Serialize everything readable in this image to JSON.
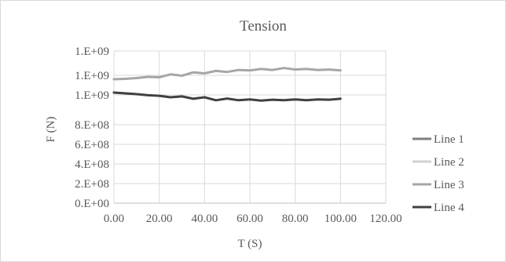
{
  "chart_data": {
    "type": "line",
    "title": "Tension",
    "xlabel": "T (S)",
    "ylabel": "F (N)",
    "xlim": [
      0,
      120
    ],
    "ylim": [
      0,
      1200000000
    ],
    "x_ticks": [
      0,
      20,
      40,
      60,
      80,
      100,
      120
    ],
    "x_tick_labels": [
      "0.00",
      "20.00",
      "40.00",
      "60.00",
      "80.00",
      "100.00",
      "120.00"
    ],
    "y_ticks": [
      0,
      200000000,
      400000000,
      600000000,
      800000000,
      1000000000,
      1100000000,
      1200000000
    ],
    "y_tick_labels": [
      "0.E+00",
      "2.E+08",
      "4.E+08",
      "6.E+08",
      "8.E+08",
      "1.E+09",
      "1.E+09",
      "1.E+09"
    ],
    "grid": true,
    "legend_position": "right",
    "series": [
      {
        "name": "Line 1",
        "color": "#7f7f7f",
        "x": [],
        "y": []
      },
      {
        "name": "Line 2",
        "color": "#d0d0d0",
        "x": [],
        "y": []
      },
      {
        "name": "Line 3",
        "color": "#a6a6a6",
        "x": [
          0,
          5,
          10,
          15,
          20,
          25,
          30,
          35,
          40,
          45,
          50,
          55,
          60,
          65,
          70,
          75,
          80,
          85,
          90,
          95,
          100
        ],
        "y": [
          1080000000,
          1082000000,
          1086000000,
          1092000000,
          1090000000,
          1104000000,
          1098000000,
          1112000000,
          1108000000,
          1118000000,
          1114000000,
          1122000000,
          1120000000,
          1126000000,
          1122000000,
          1130000000,
          1124000000,
          1126000000,
          1122000000,
          1124000000,
          1120000000
        ]
      },
      {
        "name": "Line 4",
        "color": "#404040",
        "x": [
          0,
          5,
          10,
          15,
          20,
          25,
          30,
          35,
          40,
          45,
          50,
          55,
          60,
          65,
          70,
          75,
          80,
          85,
          90,
          95,
          100
        ],
        "y": [
          1012000000,
          1008000000,
          1004000000,
          998000000,
          994000000,
          984000000,
          990000000,
          974000000,
          984000000,
          964000000,
          976000000,
          964000000,
          970000000,
          962000000,
          968000000,
          964000000,
          970000000,
          964000000,
          970000000,
          968000000,
          974000000
        ]
      }
    ]
  }
}
